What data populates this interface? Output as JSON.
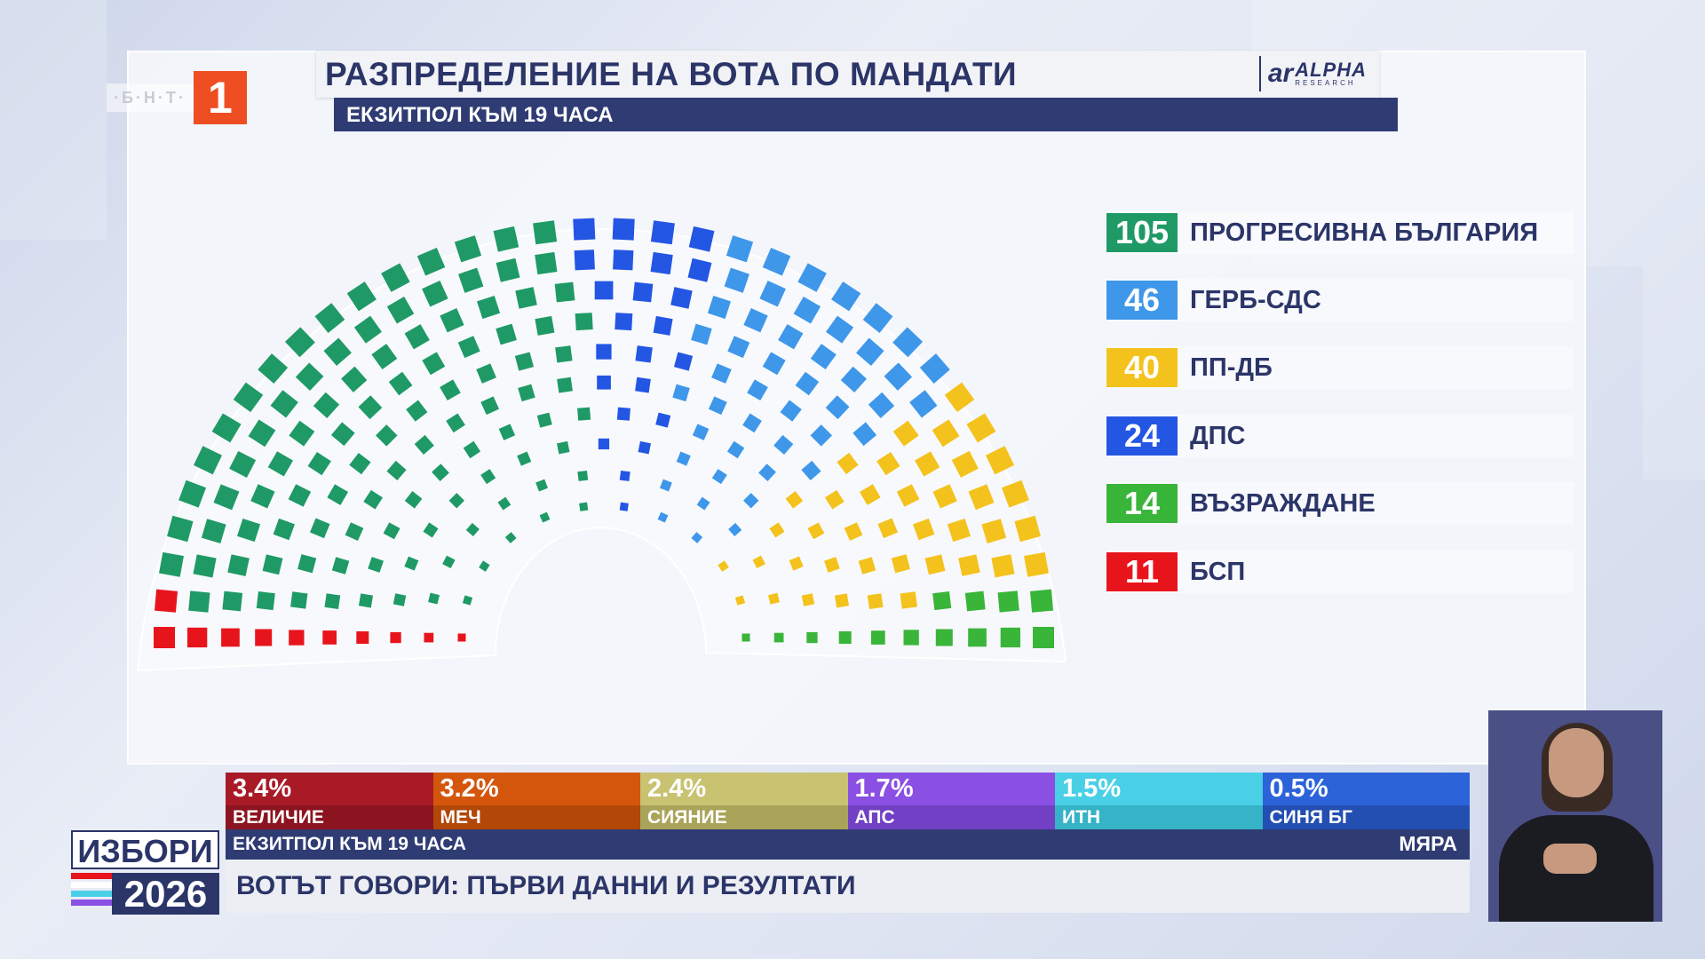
{
  "channel": {
    "text": "·Б·Н·Т·",
    "number": "1"
  },
  "header": {
    "title": "РАЗПРЕДЕЛЕНИЕ НА ВОТА ПО МАНДАТИ",
    "subtitle": "ЕКЗИТПОЛ КЪМ 19 ЧАСА",
    "pollster_mark": "ar",
    "pollster_name": "ALPHA",
    "pollster_sub": "RESEARCH"
  },
  "chart_data": {
    "type": "hemicycle",
    "total_seats": 240,
    "parties": [
      {
        "seats": 105,
        "name": "ПРОГРЕСИВНА БЪЛГАРИЯ",
        "color": "#1f9a66"
      },
      {
        "seats": 46,
        "name": "ГЕРБ-СДС",
        "color": "#3f97ea"
      },
      {
        "seats": 40,
        "name": "ПП-ДБ",
        "color": "#f4c21c"
      },
      {
        "seats": 24,
        "name": "ДПС",
        "color": "#2456e4"
      },
      {
        "seats": 14,
        "name": "ВЪЗРАЖДАНЕ",
        "color": "#39b53a"
      },
      {
        "seats": 11,
        "name": "БСП",
        "color": "#e8141c"
      }
    ],
    "seat_order": [
      "БСП",
      "ПРОГРЕСИВНА БЪЛГАРИЯ",
      "ДПС",
      "ГЕРБ-СДС",
      "ПП-ДБ",
      "ВЪЗРАЖДАНЕ"
    ]
  },
  "others": [
    {
      "pct": "3.4%",
      "name": "ВЕЛИЧИЕ",
      "color": "#a91a27",
      "color_dark": "#8c1420"
    },
    {
      "pct": "3.2%",
      "name": "МЕЧ",
      "color": "#d4560c",
      "color_dark": "#b24708"
    },
    {
      "pct": "2.4%",
      "name": "СИЯНИЕ",
      "color": "#c8c271",
      "color_dark": "#aaa45a"
    },
    {
      "pct": "1.7%",
      "name": "АПС",
      "color": "#8a4fe3",
      "color_dark": "#7240c4"
    },
    {
      "pct": "1.5%",
      "name": "ИТН",
      "color": "#4ad0e6",
      "color_dark": "#36b3c6"
    },
    {
      "pct": "0.5%",
      "name": "СИНЯ БГ",
      "color": "#2c63d8",
      "color_dark": "#234fb2"
    }
  ],
  "bottom": {
    "subtitle": "ЕКЗИТПОЛ КЪМ 19 ЧАСА",
    "right_label": "МЯРА",
    "headline": "ВОТЪТ ГОВОРИ: ПЪРВИ ДАННИ И РЕЗУЛТАТИ"
  },
  "elections": {
    "word": "ИЗБОРИ",
    "year": "2026",
    "stripe_colors": [
      "#e8141c",
      "#ffffff",
      "#4ad0e6",
      "#8a4fe3"
    ]
  }
}
